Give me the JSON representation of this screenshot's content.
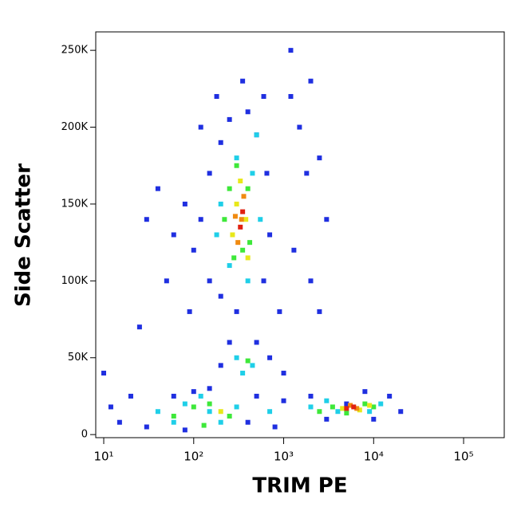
{
  "chart_data": {
    "type": "scatter",
    "xlabel": "TRIM PE",
    "ylabel": "Side Scatter",
    "xscale": "log",
    "xlim": [
      8.15,
      283000
    ],
    "ylim": [
      -2000,
      262000
    ],
    "xticks": [
      {
        "value": 10,
        "label": "10¹"
      },
      {
        "value": 100,
        "label": "10²"
      },
      {
        "value": 1000,
        "label": "10³"
      },
      {
        "value": 10000,
        "label": "10⁴"
      },
      {
        "value": 100000,
        "label": "10⁵"
      }
    ],
    "yticks": [
      0,
      {
        "value": 50000,
        "label": "50K"
      },
      {
        "value": 100000,
        "label": "100K"
      },
      {
        "value": 150000,
        "label": "150K"
      },
      {
        "value": 200000,
        "label": "200K"
      },
      {
        "value": 250000,
        "label": "250K"
      }
    ],
    "series": [
      {
        "color": "#1f2fe0",
        "x": [
          150,
          200,
          250,
          400,
          500,
          120,
          100,
          80,
          60,
          150,
          200,
          600,
          700,
          650,
          180,
          300,
          250,
          500,
          700,
          200,
          150,
          50,
          40,
          30,
          1500,
          2000,
          1200,
          1800,
          2500,
          3000,
          1300,
          2000,
          900,
          1000,
          20,
          12,
          15,
          30,
          60,
          100,
          500,
          1000,
          2000,
          3000,
          8000,
          15000,
          20000,
          10000,
          400,
          800,
          80,
          25,
          10,
          600,
          350,
          1200,
          120,
          90,
          2500,
          5000
        ],
        "y": [
          170000,
          190000,
          205000,
          210000,
          195000,
          140000,
          120000,
          150000,
          130000,
          100000,
          90000,
          100000,
          130000,
          170000,
          220000,
          80000,
          60000,
          60000,
          50000,
          45000,
          30000,
          100000,
          160000,
          140000,
          200000,
          230000,
          250000,
          170000,
          180000,
          140000,
          120000,
          100000,
          80000,
          40000,
          25000,
          18000,
          8000,
          5000,
          25000,
          28000,
          25000,
          22000,
          25000,
          10000,
          28000,
          25000,
          15000,
          10000,
          8000,
          5000,
          3000,
          70000,
          40000,
          220000,
          230000,
          220000,
          200000,
          80000,
          80000,
          20000
        ]
      },
      {
        "color": "#1fcfe8",
        "x": [
          200,
          300,
          450,
          250,
          400,
          180,
          550,
          300,
          450,
          350,
          40,
          80,
          150,
          60,
          300,
          700,
          2000,
          4000,
          3000,
          12000,
          9000,
          120,
          200,
          500
        ],
        "y": [
          150000,
          180000,
          170000,
          110000,
          100000,
          130000,
          140000,
          50000,
          45000,
          40000,
          15000,
          20000,
          15000,
          8000,
          18000,
          15000,
          18000,
          15000,
          22000,
          20000,
          15000,
          25000,
          8000,
          195000
        ]
      },
      {
        "color": "#3ee83a",
        "x": [
          250,
          400,
          350,
          280,
          420,
          300,
          220,
          100,
          150,
          60,
          250,
          3500,
          2500,
          8000,
          10000,
          400,
          5000,
          130
        ],
        "y": [
          160000,
          160000,
          120000,
          115000,
          125000,
          175000,
          140000,
          18000,
          20000,
          12000,
          12000,
          18000,
          15000,
          20000,
          18000,
          48000,
          14000,
          6000
        ]
      },
      {
        "color": "#e8e81a",
        "x": [
          300,
          380,
          330,
          270,
          400,
          4500,
          7000,
          9000,
          200
        ],
        "y": [
          150000,
          140000,
          165000,
          130000,
          115000,
          17000,
          16000,
          19000,
          15000
        ]
      },
      {
        "color": "#f08a10",
        "x": [
          340,
          310,
          360,
          5500,
          6500,
          290
        ],
        "y": [
          140000,
          125000,
          155000,
          19000,
          17000,
          142000
        ]
      },
      {
        "color": "#e02010",
        "x": [
          330,
          350,
          6000,
          5000
        ],
        "y": [
          135000,
          145000,
          18000,
          17000
        ]
      }
    ]
  }
}
